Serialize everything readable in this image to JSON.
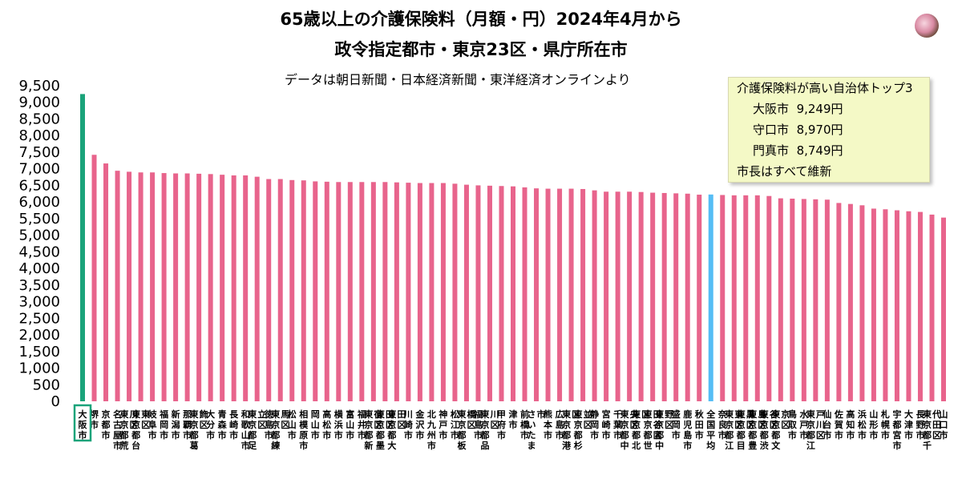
{
  "title_line1": "65歳以上の介護保険料（月額・円）2024年4月から",
  "title_line2": "政令指定都市・東京23区・県庁所在市",
  "subtitle": "データは朝日新聞・日本経済新聞・東洋経済オンラインより",
  "logo_icon": "flower-photo-icon",
  "colors": {
    "bar": "#e8648c",
    "highlight_bar": "#1aa37a",
    "average_bar": "#55bdf5",
    "highlight_box": "#1aa37a",
    "info_box_bg": "#f4f9c6"
  },
  "info_box": {
    "heading": "介護保険料が高い自治体トップ3",
    "items": [
      {
        "name": "大阪市",
        "value": "9,249円"
      },
      {
        "name": "守口市",
        "value": "8,970円"
      },
      {
        "name": "門真市",
        "value": "8,749円"
      }
    ],
    "note": "市長はすべて維新"
  },
  "chart_data": {
    "type": "bar",
    "ylim": [
      0,
      9500
    ],
    "yticks": [
      "9,500",
      "9,000",
      "8,500",
      "8,000",
      "7,500",
      "7,000",
      "6,500",
      "6,000",
      "5,500",
      "5,000",
      "4,500",
      "4,000",
      "3,500",
      "3,000",
      "2,500",
      "2,000",
      "1,500",
      "1,000",
      "500",
      "0"
    ],
    "highlight": "大阪市",
    "average": "全国平均",
    "categories": [
      "大阪市",
      "堺市",
      "京都市",
      "名古屋市",
      "東京都荒川区",
      "東京都台東区",
      "岐阜市",
      "福岡市",
      "新潟市",
      "那覇市",
      "東京都葛飾区",
      "大分市",
      "青森市",
      "長崎市",
      "和歌山市",
      "東京都足立区",
      "徳島市",
      "東京都練馬区",
      "松山市",
      "相模原市",
      "岡山市",
      "高松市",
      "横浜市",
      "富山市",
      "福井市",
      "東京都新宿区",
      "東京都墨田区",
      "東京都大田区",
      "川崎市",
      "金沢市",
      "北九州市",
      "神戸市",
      "松江市",
      "東京都板橋区",
      "福島市",
      "東京都品川区",
      "甲府市",
      "津市",
      "前橋市",
      "さいたま市",
      "熊本市",
      "広島市",
      "東京都港区",
      "東京都杉並区",
      "静岡市",
      "宮崎市",
      "千葉市",
      "東京都中央区",
      "東京都北区",
      "東京都世田谷区",
      "東京都中野区",
      "盛岡市",
      "鹿児島市",
      "秋田市",
      "全国平均",
      "奈良市",
      "東京都江東区",
      "東京都目黒区",
      "東京都豊島区",
      "東京都渋谷区",
      "東京都文京区",
      "鳥取市",
      "水戸市",
      "東京都江戸川区",
      "仙台市",
      "佐賀市",
      "高知市",
      "浜松市",
      "山形市",
      "札幌市",
      "宇都宮市",
      "大津市",
      "長野市",
      "東京都千代田区",
      "山口市"
    ],
    "values": [
      9249,
      7420,
      7160,
      6940,
      6910,
      6890,
      6890,
      6870,
      6860,
      6860,
      6850,
      6840,
      6820,
      6800,
      6800,
      6760,
      6690,
      6690,
      6660,
      6650,
      6620,
      6610,
      6600,
      6600,
      6600,
      6600,
      6600,
      6590,
      6580,
      6570,
      6570,
      6570,
      6550,
      6520,
      6500,
      6490,
      6480,
      6470,
      6440,
      6410,
      6400,
      6400,
      6400,
      6390,
      6350,
      6310,
      6310,
      6310,
      6300,
      6280,
      6270,
      6260,
      6250,
      6220,
      6225,
      6210,
      6200,
      6200,
      6200,
      6180,
      6110,
      6100,
      6090,
      6080,
      6070,
      5970,
      5940,
      5900,
      5800,
      5780,
      5750,
      5720,
      5700,
      5620,
      5530
    ]
  }
}
